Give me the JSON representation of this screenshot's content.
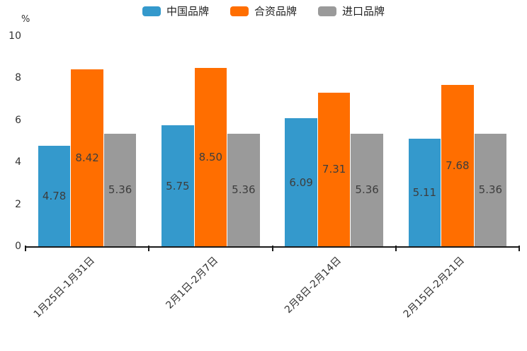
{
  "chart_data": {
    "type": "bar",
    "title": "",
    "unit_label": "%",
    "categories": [
      "1月25日-1月31日",
      "2月1日-2月7日",
      "2月8日-2月14日",
      "2月15日-2月21日"
    ],
    "series": [
      {
        "name": "中国品牌",
        "color": "#3499CC",
        "values": [
          4.78,
          5.75,
          6.09,
          5.11
        ]
      },
      {
        "name": "合资品牌",
        "color": "#FF6E00",
        "values": [
          8.42,
          8.5,
          7.31,
          7.68
        ]
      },
      {
        "name": "进口品牌",
        "color": "#9A9A9A",
        "values": [
          5.36,
          5.36,
          5.36,
          5.36
        ]
      }
    ],
    "value_labels": [
      [
        "4.78",
        "8.42",
        "5.36"
      ],
      [
        "5.75",
        "8.50",
        "5.36"
      ],
      [
        "6.09",
        "7.31",
        "5.36"
      ],
      [
        "5.11",
        "7.68",
        "5.36"
      ]
    ],
    "y_axis": {
      "min": 0,
      "max": 10,
      "ticks": [
        "0",
        "2",
        "4",
        "6",
        "8",
        "10"
      ]
    },
    "legend_position": "top",
    "grid": false,
    "axis_color": "#1a1a1a"
  }
}
